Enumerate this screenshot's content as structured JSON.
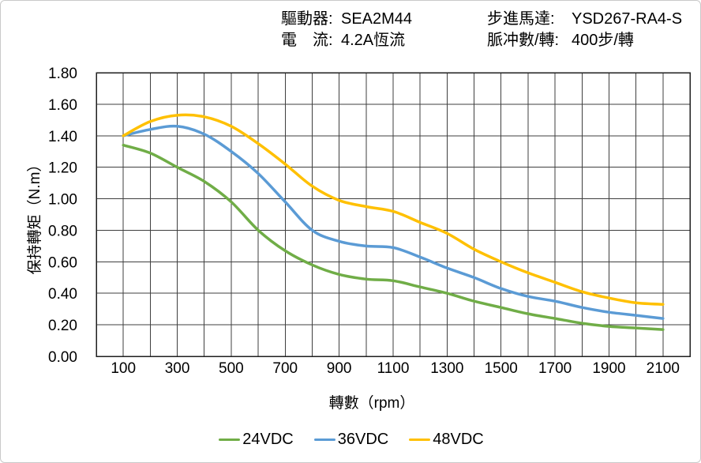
{
  "header": {
    "col1": {
      "row1": {
        "label": "驅動器:",
        "value": "SEA2M44"
      },
      "row2": {
        "label": "電　流:",
        "value": "4.2A恆流"
      }
    },
    "col2": {
      "row1": {
        "label": "步進馬達:",
        "value": "YSD267-RA4-S"
      },
      "row2": {
        "label": "脈冲數/轉:",
        "value": "400步/轉"
      }
    }
  },
  "chart_data": {
    "type": "line",
    "title": "",
    "xlabel": "轉數（rpm）",
    "ylabel": "保持轉矩（N.m）",
    "xlim": [
      0,
      2200
    ],
    "ylim": [
      0,
      1.8
    ],
    "grid": true,
    "x_grid_step": 100,
    "y_grid_step": 0.2,
    "x_ticks": [
      100,
      300,
      500,
      700,
      900,
      1100,
      1300,
      1500,
      1700,
      1900,
      2100
    ],
    "y_ticks": [
      "0.00",
      "0.20",
      "0.40",
      "0.60",
      "0.80",
      "1.00",
      "1.20",
      "1.40",
      "1.60",
      "1.80"
    ],
    "x": [
      100,
      200,
      300,
      400,
      500,
      600,
      700,
      800,
      900,
      1000,
      1100,
      1200,
      1300,
      1400,
      1500,
      1600,
      1700,
      1800,
      1900,
      2000,
      2100
    ],
    "series": [
      {
        "name": "24VDC",
        "color": "#70AD47",
        "values": [
          1.34,
          1.29,
          1.2,
          1.11,
          0.98,
          0.8,
          0.67,
          0.58,
          0.52,
          0.49,
          0.48,
          0.44,
          0.4,
          0.35,
          0.31,
          0.27,
          0.24,
          0.21,
          0.19,
          0.18,
          0.17
        ]
      },
      {
        "name": "36VDC",
        "color": "#5B9BD5",
        "values": [
          1.4,
          1.44,
          1.46,
          1.41,
          1.3,
          1.16,
          0.98,
          0.8,
          0.73,
          0.7,
          0.69,
          0.63,
          0.56,
          0.5,
          0.43,
          0.38,
          0.35,
          0.31,
          0.28,
          0.26,
          0.24
        ]
      },
      {
        "name": "48VDC",
        "color": "#FFC000",
        "values": [
          1.4,
          1.49,
          1.53,
          1.52,
          1.46,
          1.35,
          1.22,
          1.08,
          0.99,
          0.95,
          0.92,
          0.85,
          0.78,
          0.68,
          0.6,
          0.53,
          0.47,
          0.41,
          0.37,
          0.34,
          0.33
        ]
      }
    ],
    "legend_position": "bottom",
    "colors": {
      "grid": "#3f3f3f",
      "plot_border": "#1f1f1f",
      "text": "#000000"
    }
  }
}
